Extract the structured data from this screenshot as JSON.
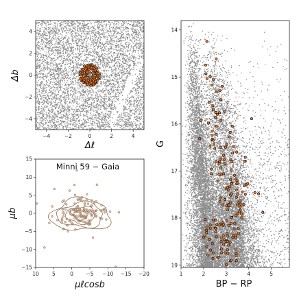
{
  "chart_data": [
    {
      "type": "scatter",
      "id": "sky",
      "title": "",
      "xlabel": "Δℓ",
      "ylabel": "Δb",
      "xlim": [
        -5,
        5
      ],
      "ylim": [
        -5,
        5
      ],
      "xticks": [
        -4,
        -2,
        0,
        2,
        4
      ],
      "yticks": [
        -4,
        -2,
        0,
        2,
        4
      ],
      "colors": {
        "field": "#8c8c8c",
        "member": "#e8792e",
        "edge": "#000000",
        "center": "#5aa9e6"
      },
      "series": [
        {
          "role": "field",
          "count": 6500
        },
        {
          "role": "members",
          "center": [
            0,
            0
          ],
          "radius": 0.95,
          "count": 190
        }
      ]
    },
    {
      "type": "scatter",
      "id": "pm",
      "title": "Minni 59  −  Gaia",
      "xlabel": "μℓcosb",
      "ylabel": "μb",
      "xlim": [
        10,
        -20
      ],
      "ylim": [
        -15,
        15
      ],
      "xticks": [
        10,
        5,
        0,
        -5,
        -10,
        -15,
        -20
      ],
      "yticks": [
        -15,
        -10,
        -5,
        0,
        5,
        10,
        15
      ],
      "colors": {
        "point": "#c9a27e",
        "edge": "#8a6a4f",
        "contour": "#8a6a4f"
      },
      "series": [
        {
          "role": "members",
          "count": 140,
          "center": [
            -2.5,
            -0.2
          ]
        },
        {
          "role": "contours",
          "center": [
            -2.5,
            -0.5
          ],
          "levels": [
            {
              "rx": 2.0,
              "ry": 1.3
            },
            {
              "rx": 4.0,
              "ry": 2.3
            },
            {
              "rx": 6.3,
              "ry": 3.4
            },
            {
              "rx": 8.2,
              "ry": 4.4
            }
          ]
        }
      ]
    },
    {
      "type": "scatter",
      "id": "cmd",
      "title": "",
      "xlabel": "BP − RP",
      "ylabel": "G",
      "xlim": [
        1,
        5.8
      ],
      "ylim": [
        19.05,
        13.8
      ],
      "xticks": [
        1,
        2,
        3,
        4,
        5
      ],
      "yticks": [
        14,
        15,
        16,
        17,
        18,
        19
      ],
      "colors": {
        "field": "#8c8c8c",
        "member": "#e8792e",
        "edge": "#000000"
      },
      "series": [
        {
          "role": "field",
          "count": 14000
        },
        {
          "role": "members",
          "count": 180
        }
      ]
    }
  ]
}
